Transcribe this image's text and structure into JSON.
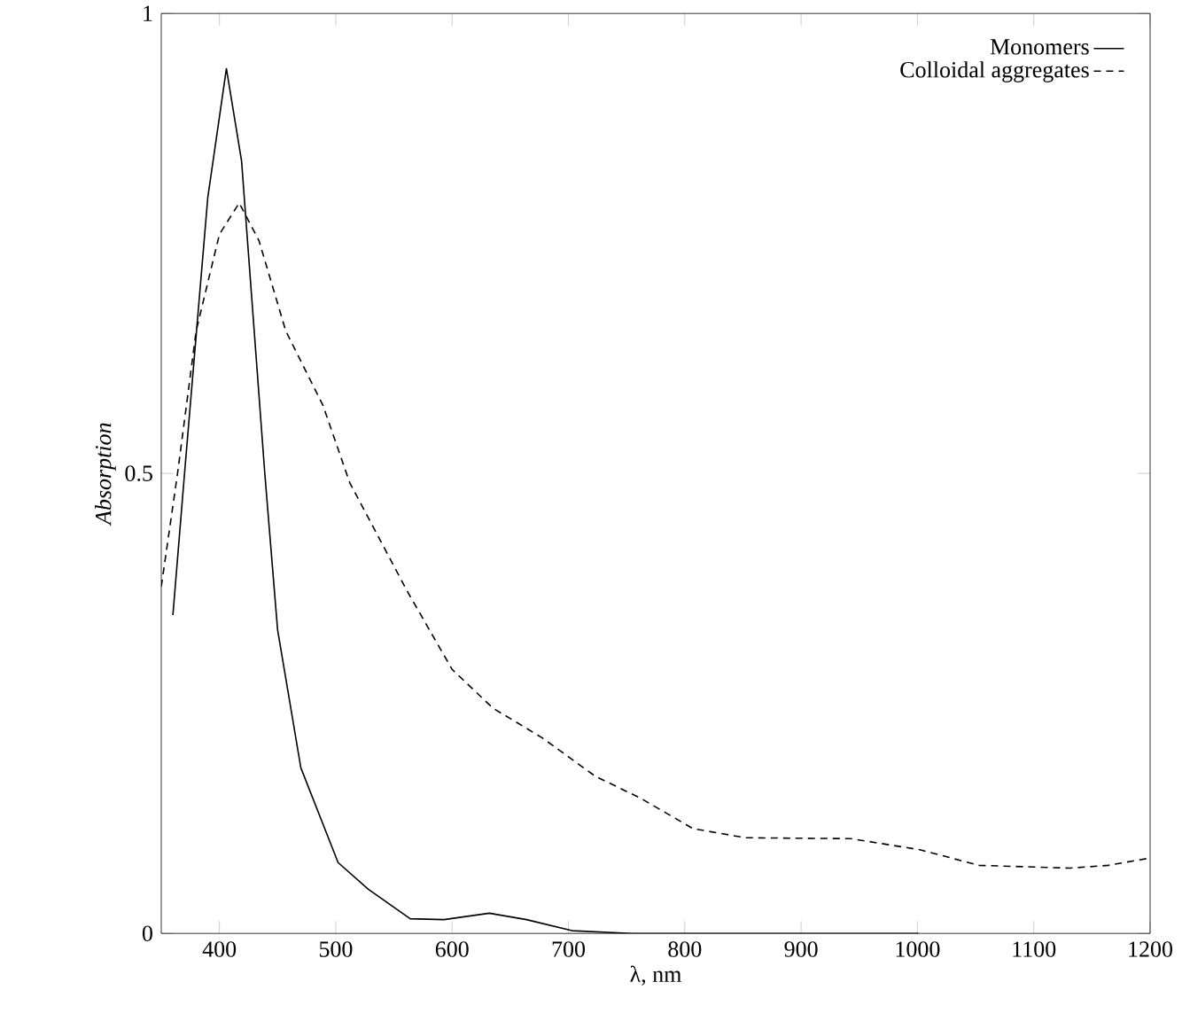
{
  "chart_data": {
    "type": "line",
    "xlabel": "λ, nm",
    "ylabel": "Absorption",
    "xlim": [
      350,
      1200
    ],
    "ylim": [
      0,
      1
    ],
    "xticks": [
      400,
      500,
      600,
      700,
      800,
      900,
      1000,
      1100,
      1200
    ],
    "yticks": [
      0,
      0.5,
      1
    ],
    "legend": "top right",
    "marker": "none",
    "grid": false,
    "series": [
      {
        "name": "Monomers",
        "color": "#000000",
        "line_style": "solid",
        "x": [
          360,
          370,
          390,
          406,
          419,
          439,
          450,
          470,
          502,
          528,
          564,
          593,
          632,
          664,
          703,
          755,
          1001
        ],
        "values": [
          0.346,
          0.5,
          0.8,
          0.94,
          0.84,
          0.5,
          0.33,
          0.18,
          0.077,
          0.048,
          0.016,
          0.015,
          0.022,
          0.015,
          0.003,
          0,
          0
        ]
      },
      {
        "name": "Colloidal aggregates",
        "color": "#000000",
        "line_style": "dashed",
        "x": [
          350,
          364,
          380,
          400,
          417,
          434,
          457,
          489,
          512,
          561,
          600,
          635,
          677,
          723,
          762,
          807,
          852,
          943,
          1002,
          1053,
          1131,
          1164,
          1200
        ],
        "values": [
          0.377,
          0.5,
          0.655,
          0.76,
          0.794,
          0.753,
          0.655,
          0.574,
          0.49,
          0.373,
          0.287,
          0.245,
          0.213,
          0.171,
          0.147,
          0.114,
          0.104,
          0.103,
          0.091,
          0.074,
          0.071,
          0.074,
          0.082
        ]
      }
    ]
  }
}
